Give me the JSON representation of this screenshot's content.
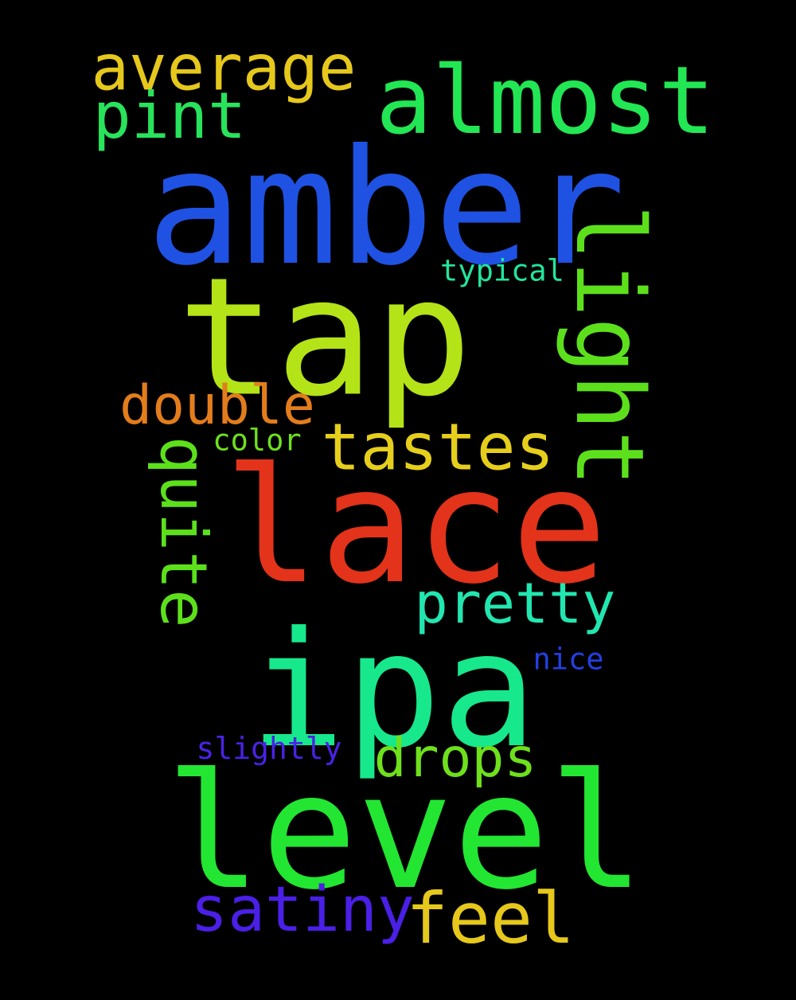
{
  "words": [
    {
      "text": "amber",
      "color": "#1f52e3",
      "vertical": false
    },
    {
      "text": "tap",
      "color": "#b4e317",
      "vertical": false
    },
    {
      "text": "lace",
      "color": "#e3331a",
      "vertical": false
    },
    {
      "text": "ipa",
      "color": "#17e88c",
      "vertical": false
    },
    {
      "text": "level",
      "color": "#22e632",
      "vertical": false
    },
    {
      "text": "almost",
      "color": "#22e654",
      "vertical": false
    },
    {
      "text": "average",
      "color": "#e6c81c",
      "vertical": false
    },
    {
      "text": "pint",
      "color": "#28e35b",
      "vertical": false
    },
    {
      "text": "light",
      "color": "#5de01c",
      "vertical": true
    },
    {
      "text": "tastes",
      "color": "#e6cf1c",
      "vertical": false
    },
    {
      "text": "double",
      "color": "#e37d1c",
      "vertical": false
    },
    {
      "text": "quite",
      "color": "#5de01c",
      "vertical": true
    },
    {
      "text": "pretty",
      "color": "#22e6b0",
      "vertical": false
    },
    {
      "text": "drops",
      "color": "#6ee01c",
      "vertical": false
    },
    {
      "text": "satiny",
      "color": "#4a1fe6",
      "vertical": false
    },
    {
      "text": "feel",
      "color": "#e6c81c",
      "vertical": false
    },
    {
      "text": "typical",
      "color": "#22e69d",
      "vertical": false
    },
    {
      "text": "color",
      "color": "#6ee01c",
      "vertical": false
    },
    {
      "text": "nice",
      "color": "#2240e3",
      "vertical": false
    },
    {
      "text": "slightly",
      "color": "#4a22e6",
      "vertical": false
    }
  ]
}
